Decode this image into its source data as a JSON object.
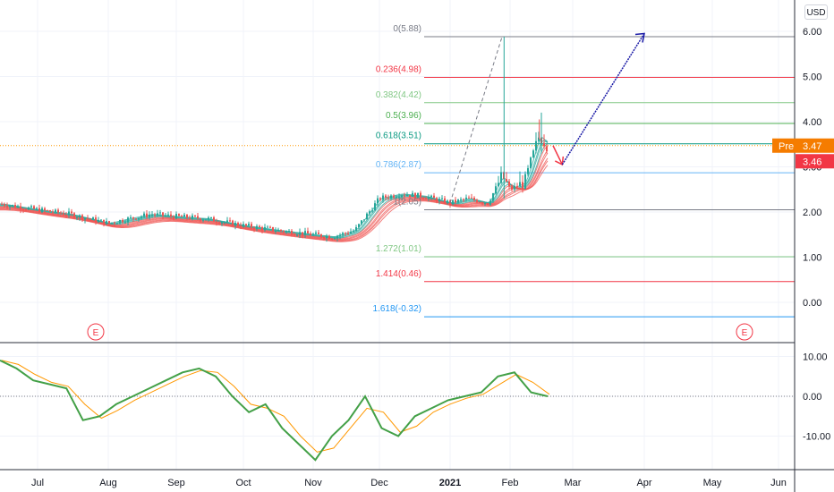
{
  "unit_button": "USD",
  "earnings_marker": "E",
  "price_tags": {
    "pre_label": "Pre",
    "pre_value": "3.47",
    "last_value": "3.46",
    "pre_color": "#f57c00",
    "last_color": "#f23645"
  },
  "colors": {
    "up": "#26a69a",
    "down": "#ef5350",
    "fib_red": "#f23645",
    "fib_green": "#4caf50",
    "fib_blue": "#2196f3",
    "fib_gray": "#787b86",
    "oscillator": "#43a047",
    "signal": "#ff9800",
    "projection_arrow": "#1a1aa6"
  },
  "chart_data": [
    {
      "type": "candlestick",
      "x_ticks": [
        "Jul",
        "Aug",
        "Sep",
        "Oct",
        "Nov",
        "Dec",
        "2021",
        "Feb",
        "Mar",
        "Apr",
        "May",
        "Jun"
      ],
      "y_ticks": [
        "6.00",
        "5.00",
        "4.00",
        "3.00",
        "2.00",
        "1.00",
        "0.00"
      ],
      "ylim": [
        -0.6,
        6.1
      ],
      "fibonacci_levels": [
        {
          "label": "0(5.88)",
          "ratio": 0,
          "price": 5.88,
          "color": "#787b86"
        },
        {
          "label": "0.236(4.98)",
          "ratio": 0.236,
          "price": 4.98,
          "color": "#f23645"
        },
        {
          "label": "0.382(4.42)",
          "ratio": 0.382,
          "price": 4.42,
          "color": "#81c784"
        },
        {
          "label": "0.5(3.96)",
          "ratio": 0.5,
          "price": 3.96,
          "color": "#4caf50"
        },
        {
          "label": "0.618(3.51)",
          "ratio": 0.618,
          "price": 3.51,
          "color": "#089981"
        },
        {
          "label": "0.786(2.87)",
          "ratio": 0.786,
          "price": 2.87,
          "color": "#64b5f6"
        },
        {
          "label": "1(2.05)",
          "ratio": 1,
          "price": 2.05,
          "color": "#787b86"
        },
        {
          "label": "1.272(1.01)",
          "ratio": 1.272,
          "price": 1.01,
          "color": "#81c784"
        },
        {
          "label": "1.414(0.46)",
          "ratio": 1.414,
          "price": 0.46,
          "color": "#f23645"
        },
        {
          "label": "1.618(-0.32)",
          "ratio": 1.618,
          "price": -0.32,
          "color": "#2196f3"
        }
      ],
      "last_price": 3.46,
      "pre_market_price": 3.47,
      "price_path": [
        [
          "Jun 15",
          2.18
        ],
        [
          "Jul 1",
          2.05
        ],
        [
          "Jul 15",
          1.95
        ],
        [
          "Aug 1",
          1.75
        ],
        [
          "Aug 10",
          1.85
        ],
        [
          "Aug 20",
          1.95
        ],
        [
          "Sep 1",
          1.9
        ],
        [
          "Sep 15",
          1.85
        ],
        [
          "Oct 1",
          1.7
        ],
        [
          "Oct 15",
          1.6
        ],
        [
          "Nov 1",
          1.5
        ],
        [
          "Nov 10",
          1.45
        ],
        [
          "Nov 20",
          1.6
        ],
        [
          "Dec 1",
          2.3
        ],
        [
          "Dec 10",
          2.4
        ],
        [
          "Dec 20",
          2.35
        ],
        [
          "Jan 1",
          2.2
        ],
        [
          "Jan 10",
          2.3
        ],
        [
          "Jan 20",
          2.2
        ],
        [
          "Jan 27",
          2.8
        ],
        [
          "Feb 1",
          2.5
        ],
        [
          "Feb 8",
          2.65
        ],
        [
          "Feb 15",
          3.7
        ],
        [
          "Feb 19",
          3.47
        ]
      ],
      "projection": {
        "down_to": [
          "Feb 26",
          3.05
        ],
        "up_to": [
          "Apr 1",
          5.95
        ]
      },
      "dashed_trend": {
        "from": [
          "Jan 1",
          2.2
        ],
        "to": [
          "Jan 27",
          5.88
        ]
      }
    },
    {
      "type": "line",
      "name": "oscillator",
      "y_ticks": [
        "10.00",
        "0.00",
        "-10.00"
      ],
      "ylim": [
        -16,
        12
      ],
      "values": [
        9,
        7,
        4,
        3,
        2,
        -6,
        -5,
        -2,
        0,
        2,
        4,
        6,
        7,
        5,
        0,
        -4,
        -2,
        -8,
        -12,
        -16,
        -10,
        -6,
        0,
        -8,
        -10,
        -5,
        -3,
        -1,
        0,
        1,
        5,
        6,
        1,
        0
      ]
    }
  ]
}
